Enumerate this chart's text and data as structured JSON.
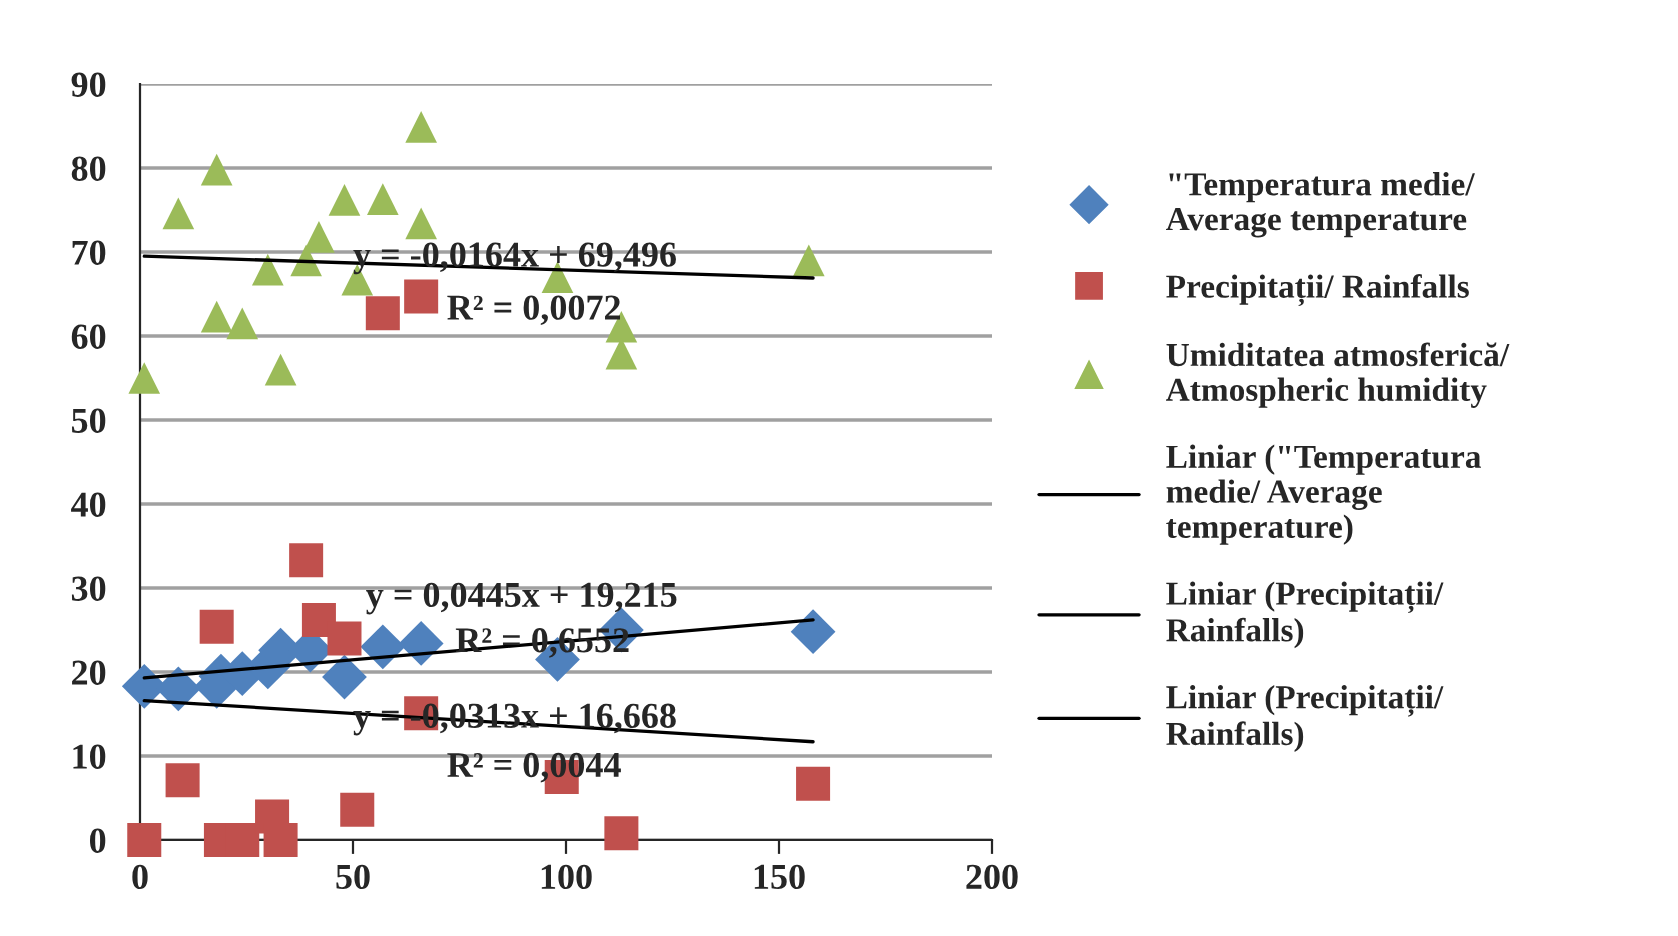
{
  "chart_data": {
    "type": "scatter",
    "xlim": [
      0,
      200
    ],
    "xticks": [
      0,
      50,
      100,
      150,
      200
    ],
    "ylim": [
      0,
      90
    ],
    "yticks": [
      0,
      10,
      20,
      30,
      40,
      50,
      60,
      70,
      80,
      90
    ],
    "grid": "y",
    "legend": "right",
    "series": [
      {
        "name": "\"Temperatura medie/\nAverage temperature",
        "color": "#4f81bd",
        "marker": "diamond",
        "x": [
          1,
          9,
          18,
          19,
          24,
          30,
          33,
          40,
          48,
          57,
          66,
          98,
          113,
          158
        ],
        "values": [
          18.3,
          18.0,
          18.3,
          19.5,
          19.8,
          20.6,
          22.6,
          22.6,
          19.4,
          23.0,
          23.4,
          21.5,
          25.0,
          24.8
        ]
      },
      {
        "name": "Precipitații/ Rainfalls",
        "color": "#c0504d",
        "marker": "square",
        "x": [
          1,
          10,
          18,
          19,
          24,
          31,
          33,
          39,
          42,
          48,
          51,
          57,
          66,
          66,
          99,
          113,
          158
        ],
        "values": [
          0,
          7.1,
          25.4,
          0,
          0,
          2.8,
          0,
          33.3,
          26.2,
          24.0,
          3.6,
          62.7,
          64.7,
          15.1,
          7.5,
          0.8,
          6.7
        ]
      },
      {
        "name": "Umiditatea atmosferică/\nAtmospheric humidity",
        "color": "#9bbb59",
        "marker": "triangle",
        "x": [
          1,
          9,
          18,
          18,
          24,
          30,
          33,
          39,
          42,
          48,
          51,
          57,
          66,
          66,
          98,
          113,
          113,
          157
        ],
        "values": [
          55,
          74.6,
          79.8,
          62.3,
          61.5,
          67.9,
          56,
          69,
          71.8,
          76.2,
          66.7,
          76.3,
          84.9,
          73.4,
          67,
          61.1,
          57.9,
          69
        ]
      },
      {
        "name": "Liniar (\"Temperatura\nmedie/ Average\ntemperature)",
        "type": "line",
        "color": "#000000",
        "x": [
          1,
          158
        ],
        "values": [
          19.3,
          26.2
        ]
      },
      {
        "name": "Liniar (Precipitații/\nRainfalls)",
        "type": "line",
        "color": "#000000",
        "x": [
          1,
          158
        ],
        "values": [
          16.6,
          11.7
        ]
      },
      {
        "name": "Liniar (Precipitații/\nRainfalls)",
        "type": "line",
        "color": "#000000",
        "x": [
          1,
          158
        ],
        "values": [
          69.5,
          66.9
        ]
      }
    ],
    "annotations": [
      "y = -0,0164x + 69,496",
      "R² = 0,0072",
      "y = 0,0445x + 19,215",
      "R² = 0,6552",
      "y = -0,0313x + 16,668",
      "R² = 0,0044"
    ]
  }
}
